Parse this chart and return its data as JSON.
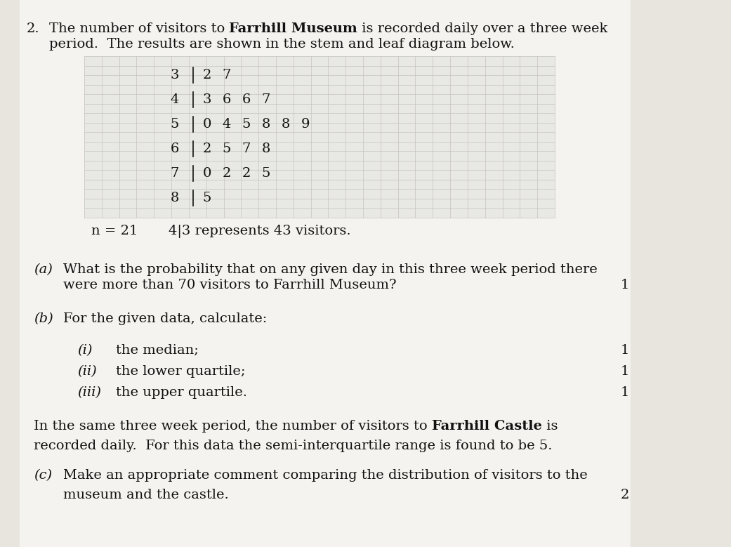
{
  "stem_leaves": {
    "3": [
      "2",
      "7"
    ],
    "4": [
      "3",
      "6",
      "6",
      "7"
    ],
    "5": [
      "0",
      "4",
      "5",
      "8",
      "8",
      "9"
    ],
    "6": [
      "2",
      "5",
      "7",
      "8"
    ],
    "7": [
      "0",
      "2",
      "2",
      "5"
    ],
    "8": [
      "5"
    ]
  },
  "stems_order": [
    "3",
    "4",
    "5",
    "6",
    "7",
    "8"
  ],
  "n_label": "n = 21",
  "key_label": "4|3 represents 43 visitors.",
  "bg_color": "#e8e4de",
  "paper_color": "#f5f3ef",
  "grid_color": "#c8c4be",
  "text_color": "#111111",
  "font_size_body": 14,
  "font_size_stem": 14
}
